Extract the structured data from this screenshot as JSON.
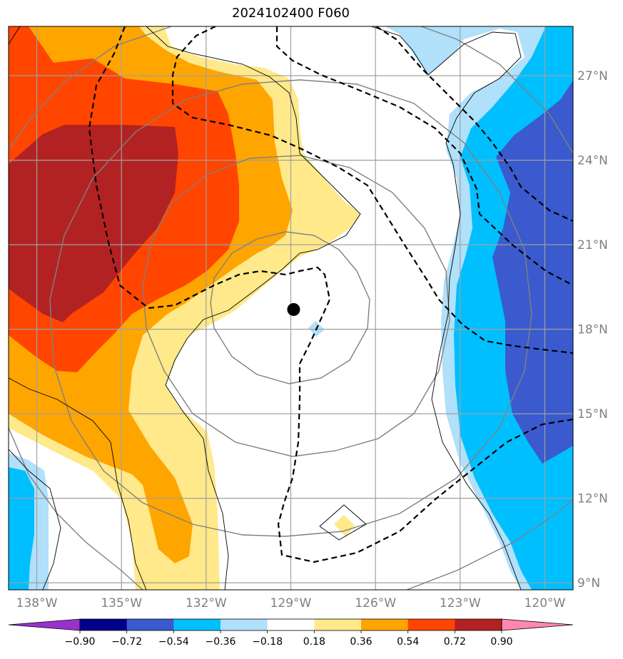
{
  "title": "2024102400 F060",
  "map": {
    "lon_range": [
      -139.0,
      -119.0
    ],
    "lat_range": [
      8.75,
      28.75
    ],
    "lon_ticks": [
      {
        "value": -138,
        "label": "138°W"
      },
      {
        "value": -135,
        "label": "135°W"
      },
      {
        "value": -132,
        "label": "132°W"
      },
      {
        "value": -129,
        "label": "129°W"
      },
      {
        "value": -126,
        "label": "126°W"
      },
      {
        "value": -123,
        "label": "123°W"
      },
      {
        "value": -120,
        "label": "120°W"
      }
    ],
    "lat_ticks": [
      {
        "value": 9,
        "label": "9°N"
      },
      {
        "value": 12,
        "label": "12°N"
      },
      {
        "value": 15,
        "label": "15°N"
      },
      {
        "value": 18,
        "label": "18°N"
      },
      {
        "value": 21,
        "label": "21°N"
      },
      {
        "value": 24,
        "label": "24°N"
      },
      {
        "value": 27,
        "label": "27°N"
      }
    ],
    "center_marker": {
      "lon": -128.9,
      "lat": 18.7
    },
    "gridlines": true,
    "colors": {
      "gridline": "#a0a0a0",
      "gray_contour": "#808080",
      "black_dashed": "#000000"
    }
  },
  "colorbar": {
    "levels": [
      -0.9,
      -0.72,
      -0.54,
      -0.36,
      -0.18,
      0.18,
      0.36,
      0.54,
      0.72,
      0.9
    ],
    "labels": [
      "−0.90",
      "−0.72",
      "−0.54",
      "−0.36",
      "−0.18",
      "0.18",
      "0.36",
      "0.54",
      "0.72",
      "0.90"
    ],
    "colors": [
      "#9932cc",
      "#00008b",
      "#3a5acd",
      "#00bfff",
      "#b0e0fa",
      "#ffffff",
      "#ffe98a",
      "#ffa500",
      "#ff4500",
      "#b22222",
      "#ff88b0"
    ],
    "extend": "both"
  }
}
